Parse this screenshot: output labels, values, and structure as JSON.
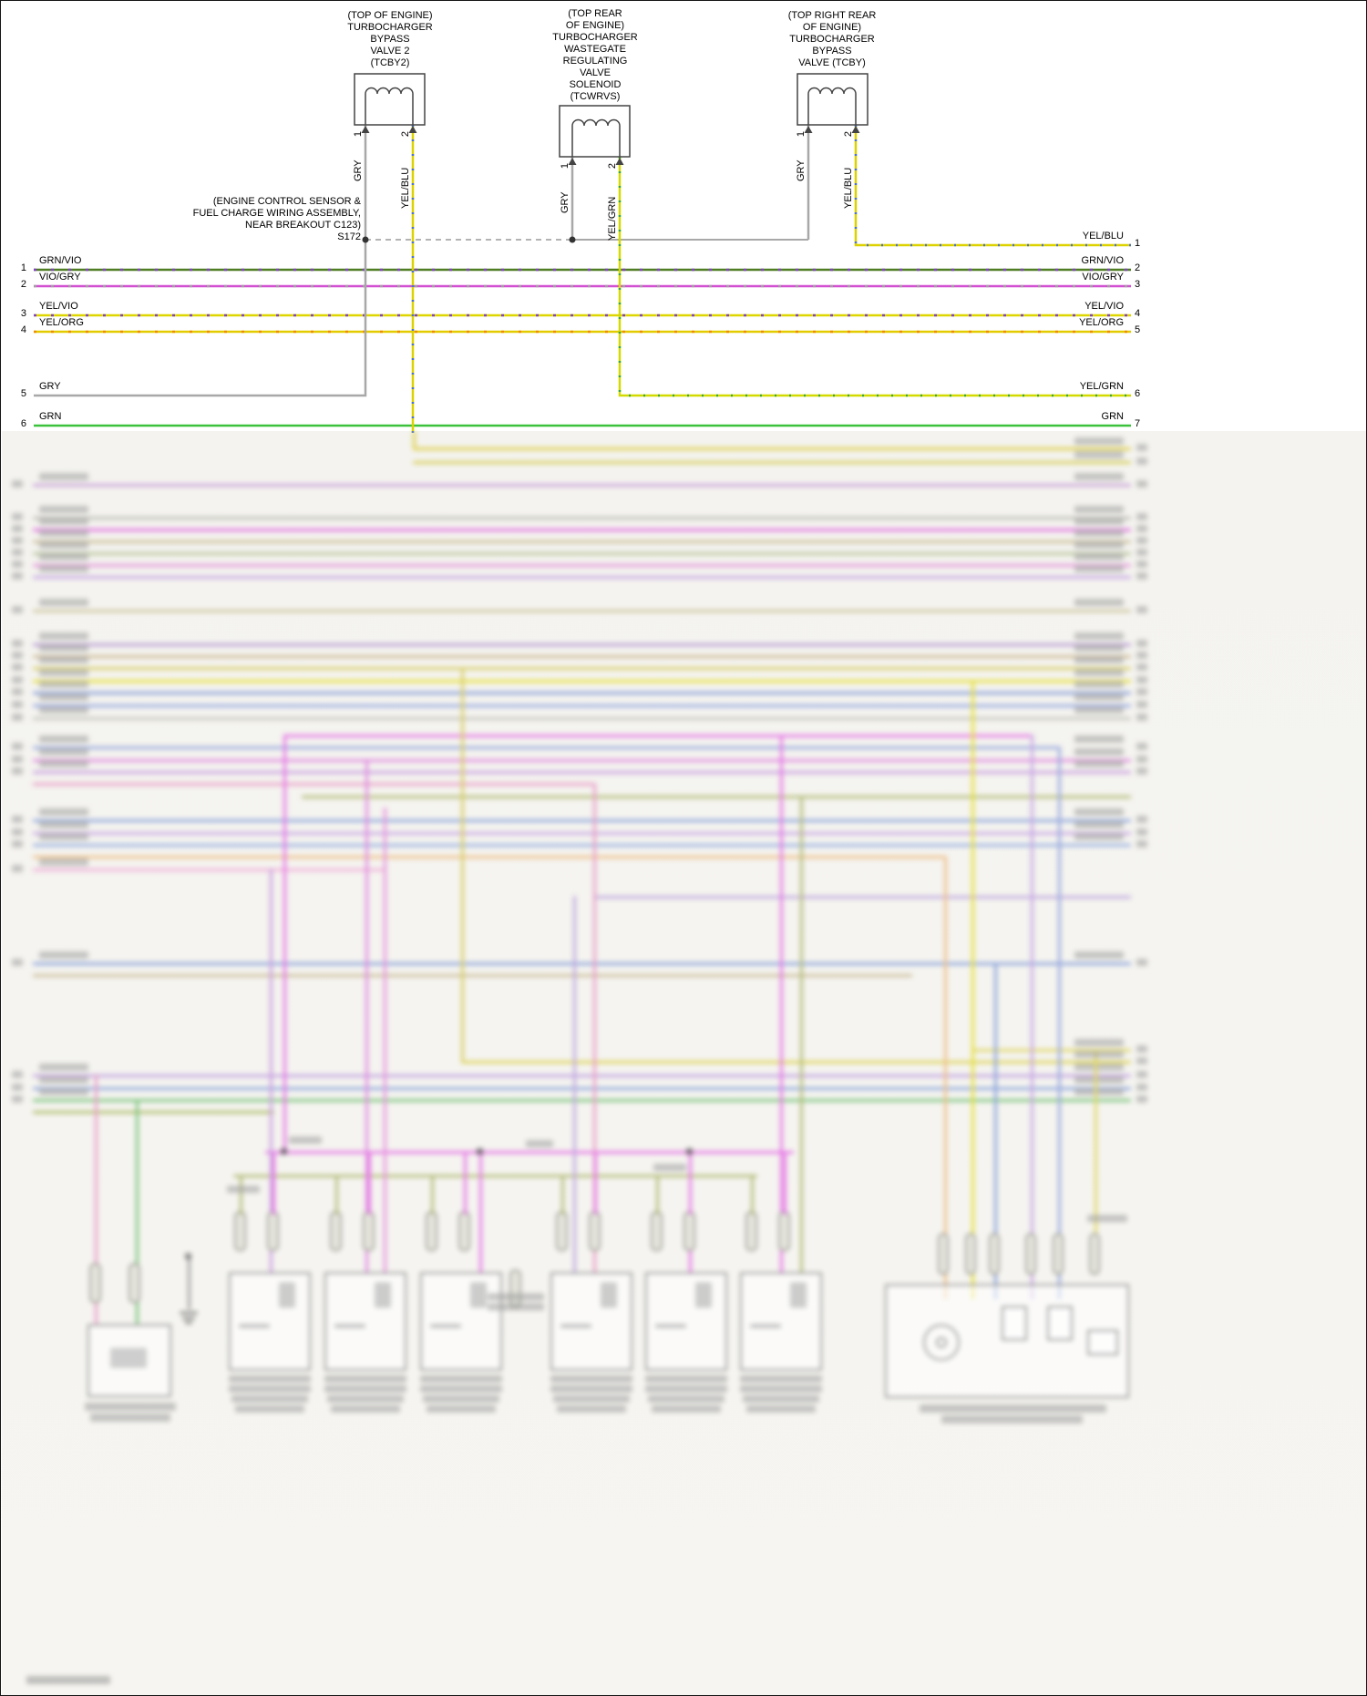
{
  "components": {
    "tcby2": {
      "title": "(TOP OF ENGINE)\nTURBOCHARGER\nBYPASS\nVALVE 2\n(TCBY2)",
      "pin1": "GRY",
      "pin1_num": "1",
      "pin2": "YEL/BLU",
      "pin2_num": "2"
    },
    "tcwrvs": {
      "title": "(TOP REAR\nOF ENGINE)\nTURBOCHARGER\nWASTEGATE\nREGULATING\nVALVE\nSOLENOID\n(TCWRVS)",
      "pin1": "GRY",
      "pin1_num": "1",
      "pin2": "YEL/GRN",
      "pin2_num": "2"
    },
    "tcby": {
      "title": "(TOP RIGHT REAR\nOF ENGINE)\nTURBOCHARGER\nBYPASS\nVALVE (TCBY)",
      "pin1": "GRY",
      "pin1_num": "1",
      "pin2": "YEL/BLU",
      "pin2_num": "2"
    }
  },
  "splice": {
    "note": "(ENGINE CONTROL SENSOR &\nFUEL CHARGE WIRING ASSEMBLY,\nNEAR BREAKOUT C123)",
    "label": "S172"
  },
  "left_wires": [
    {
      "num": "1",
      "label": "GRN/VIO"
    },
    {
      "num": "2",
      "label": "VIO/GRY"
    },
    {
      "num": "3",
      "label": "YEL/VIO"
    },
    {
      "num": "4",
      "label": "YEL/ORG"
    },
    {
      "num": "5",
      "label": "GRY"
    },
    {
      "num": "6",
      "label": "GRN"
    }
  ],
  "right_wires": [
    {
      "num": "1",
      "label": "YEL/BLU"
    },
    {
      "num": "2",
      "label": "GRN/VIO"
    },
    {
      "num": "3",
      "label": "VIO/GRY"
    },
    {
      "num": "4",
      "label": "YEL/VIO"
    },
    {
      "num": "5",
      "label": "YEL/ORG"
    },
    {
      "num": "6",
      "label": "YEL/GRN"
    },
    {
      "num": "7",
      "label": "GRN"
    }
  ],
  "colors": {
    "gray_wire": "#a8a8a8",
    "grn_vio": "#4e7d22",
    "vio_gry": "#d24fd2",
    "yel_vio": "#ded600",
    "yel_org": "#e2cc00",
    "yel_blu": "#dcd200",
    "yel_grn": "#d2da00",
    "grn": "#3cc13c",
    "stripe_vio": "#8040c0",
    "stripe_gry": "#a0a0a0",
    "stripe_org": "#f08c00",
    "stripe_blu": "#4a6fd0",
    "stripe_grn": "#3aa63a"
  }
}
